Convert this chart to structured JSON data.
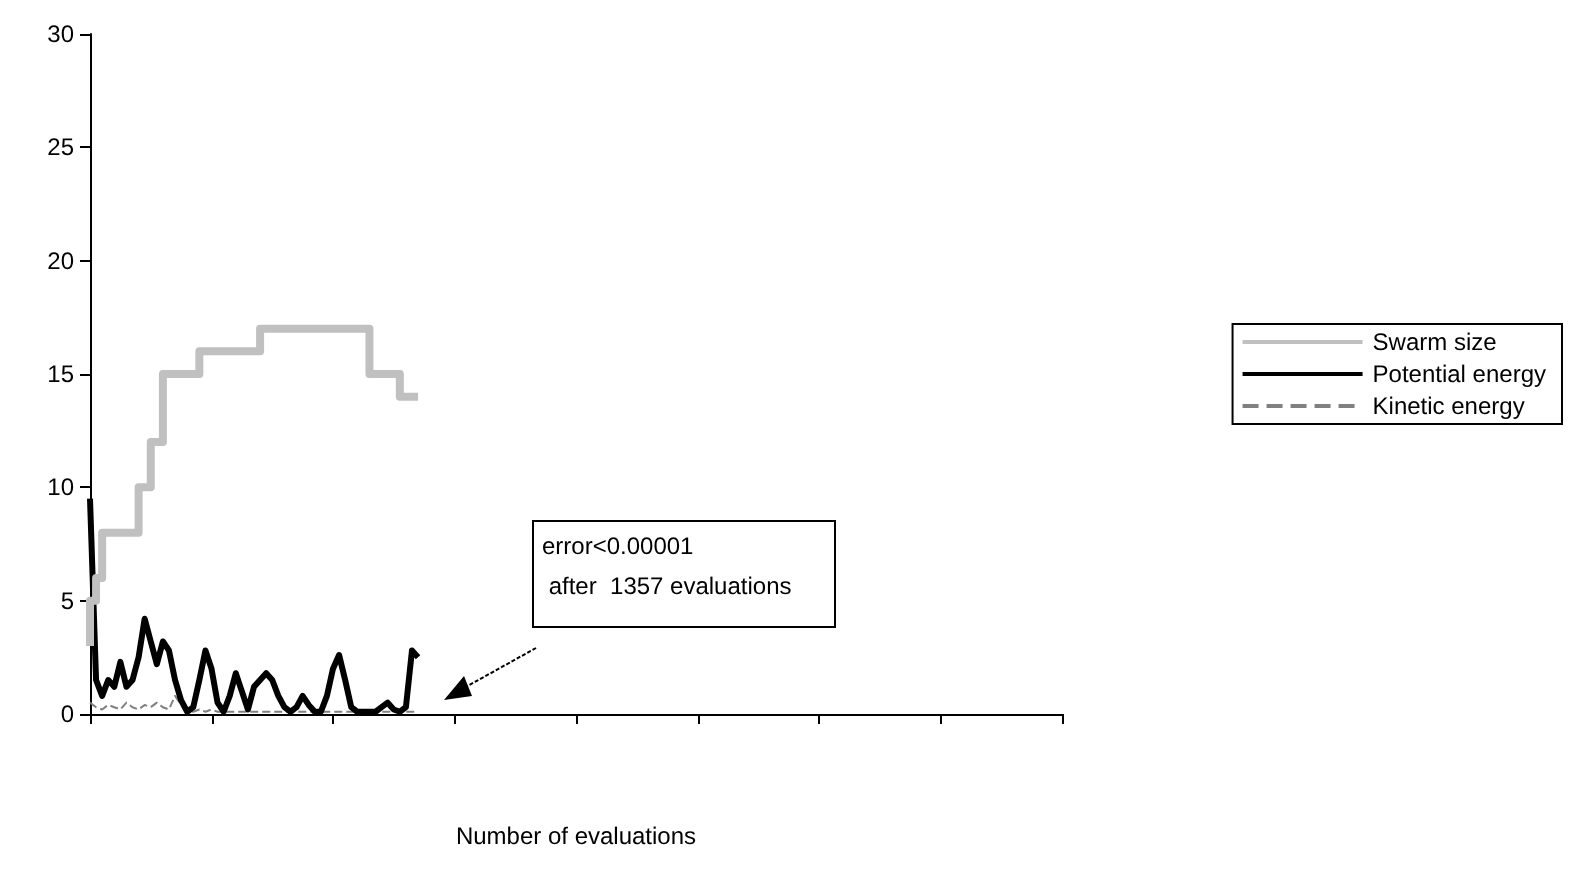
{
  "chart_data": {
    "type": "line",
    "xlabel": "Number of evaluations",
    "annotations": [
      "error<0.00001\n after  1357 evaluations"
    ],
    "ylim": [
      0,
      30
    ],
    "yticks": [
      0,
      5,
      10,
      15,
      20,
      25,
      30
    ],
    "tick_labels": "y",
    "grid": false,
    "legend": "right",
    "categories": [
      null,
      null,
      null,
      null,
      null,
      null,
      null,
      null,
      null,
      null,
      null,
      null,
      null,
      null,
      null,
      null,
      null,
      null,
      null,
      null,
      null,
      null,
      null,
      null,
      null,
      null,
      null,
      null,
      null,
      null,
      null,
      null,
      null,
      null,
      null,
      null,
      null,
      null,
      null,
      null,
      null,
      null,
      null,
      null,
      null,
      null,
      null,
      null,
      null,
      null,
      null,
      null,
      null,
      null,
      null,
      null,
      null,
      null,
      null,
      null,
      null,
      null,
      null,
      null,
      null,
      null,
      null,
      null,
      null,
      null,
      null,
      null,
      null,
      null,
      null,
      null,
      null,
      null,
      null,
      null,
      null,
      null,
      null,
      null,
      null,
      null,
      null,
      null,
      null,
      null,
      null,
      null,
      null,
      null,
      null,
      null,
      null,
      null,
      null,
      null,
      null,
      null,
      null,
      null,
      null,
      null,
      null,
      null,
      null,
      null,
      null,
      null,
      null,
      null,
      null,
      null,
      null,
      null,
      null,
      null,
      null,
      null,
      null,
      null,
      null,
      null,
      null,
      null,
      null,
      null,
      null,
      null,
      null,
      null,
      null,
      null,
      null,
      null,
      null,
      null,
      null,
      null,
      null,
      null,
      null,
      null,
      null,
      null,
      null,
      null,
      null,
      null,
      null,
      null,
      null,
      null,
      null,
      null,
      null,
      null,
      null
    ],
    "series": [
      {
        "name": "Swarm size",
        "type": "step",
        "color": "#c0c0c0",
        "line_style": "solid",
        "values": [
          3,
          5,
          6,
          8,
          8,
          8,
          8,
          8,
          8,
          10,
          10,
          12,
          12,
          15,
          15,
          15,
          15,
          15,
          15,
          16,
          16,
          16,
          16,
          16,
          16,
          16,
          16,
          16,
          16,
          17,
          17,
          17,
          17,
          17,
          17,
          17,
          17,
          17,
          17,
          17,
          17,
          17,
          17,
          17,
          17,
          17,
          17,
          15,
          15,
          15,
          15,
          15,
          14,
          14,
          14,
          null,
          null,
          null,
          null,
          null,
          null,
          null,
          null,
          null,
          null,
          null,
          null,
          null,
          null,
          null,
          null,
          null,
          null,
          null,
          null,
          null,
          null,
          null,
          null,
          null,
          null,
          null,
          null,
          null,
          null,
          null,
          null,
          null,
          null,
          null,
          null,
          null,
          null,
          null,
          null,
          null,
          null,
          null,
          null,
          null,
          null,
          null,
          null,
          null,
          null,
          null,
          null,
          null,
          null,
          null,
          null,
          null,
          null,
          null,
          null,
          null,
          null,
          null,
          null,
          null,
          null,
          null,
          null,
          null,
          null,
          null,
          null,
          null,
          null,
          null,
          null,
          null,
          null,
          null,
          null,
          null,
          null,
          null,
          null,
          null,
          null,
          null,
          null,
          null,
          null,
          null,
          null,
          null,
          null,
          null,
          null,
          null,
          null,
          null,
          null,
          null,
          null,
          null,
          null,
          null,
          null
        ]
      },
      {
        "name": "Potential energy",
        "color": "#000000",
        "line_style": "solid",
        "values": [
          9.5,
          1.5,
          0.8,
          1.5,
          1.2,
          2.3,
          1.2,
          1.5,
          2.5,
          4.2,
          3.2,
          2.2,
          3.2,
          2.8,
          1.5,
          0.6,
          0.1,
          0.3,
          1.5,
          2.8,
          2,
          0.5,
          0.1,
          0.8,
          1.8,
          1,
          0.2,
          1.2,
          1.5,
          1.8,
          1.5,
          0.8,
          0.3,
          0.1,
          0.3,
          0.8,
          0.4,
          0.1,
          0.1,
          0.8,
          2,
          2.6,
          1.5,
          0.3,
          0.1,
          0.1,
          0.1,
          0.1,
          0.3,
          0.5,
          0.2,
          0.1,
          0.3,
          2.8,
          2.5,
          null,
          null,
          null,
          null,
          null,
          null,
          null,
          null,
          null,
          null,
          null,
          null,
          null,
          null,
          null,
          null,
          null,
          null,
          null,
          null,
          null,
          null,
          null,
          null,
          null,
          null,
          null,
          null,
          null,
          null,
          null,
          null,
          null,
          null,
          null,
          null,
          null,
          null,
          null,
          null,
          null,
          null,
          null,
          null,
          null,
          null,
          null,
          null,
          null,
          null,
          null,
          null,
          null,
          null,
          null,
          null,
          null,
          null,
          null,
          null,
          null,
          null,
          null,
          null,
          null,
          null,
          null,
          null,
          null,
          null,
          null,
          null,
          null,
          null,
          null,
          null,
          null,
          null,
          null,
          null,
          null,
          null,
          null,
          null,
          null,
          null,
          null,
          null,
          null,
          null,
          null,
          null,
          null,
          null,
          null,
          null,
          null,
          null,
          null,
          null,
          null,
          null,
          null,
          null,
          null,
          null
        ]
      },
      {
        "name": "Kinetic energy",
        "color": "#808080",
        "line_style": "dashed",
        "values": [
          0.5,
          0.3,
          0.2,
          0.4,
          0.3,
          0.2,
          0.5,
          0.3,
          0.2,
          0.4,
          0.3,
          0.5,
          0.3,
          0.2,
          0.8,
          0.4,
          0.2,
          0.1,
          0.2,
          0.1,
          0.2,
          0.1,
          0.1,
          0.1,
          0.1,
          0.1,
          0.1,
          0.1,
          0.1,
          0.1,
          0.1,
          0.1,
          0.1,
          0.1,
          0.1,
          0.1,
          0.1,
          0.1,
          0.1,
          0.1,
          0.1,
          0.1,
          0.1,
          0.1,
          0.1,
          0.1,
          0.1,
          0.1,
          0.1,
          0.1,
          0.1,
          0.1,
          0.1,
          0.1,
          0.1,
          null,
          null,
          null,
          null,
          null,
          null,
          null,
          null,
          null,
          null,
          null,
          null,
          null,
          null,
          null,
          null,
          null,
          null,
          null,
          null,
          null,
          null,
          null,
          null,
          null,
          null,
          null,
          null,
          null,
          null,
          null,
          null,
          null,
          null,
          null,
          null,
          null,
          null,
          null,
          null,
          null,
          null,
          null,
          null,
          null,
          null,
          null,
          null,
          null,
          null,
          null,
          null,
          null,
          null,
          null,
          null,
          null,
          null,
          null,
          null,
          null,
          null,
          null,
          null,
          null,
          null,
          null,
          null,
          null,
          null,
          null,
          null,
          null,
          null,
          null,
          null,
          null,
          null,
          null,
          null,
          null,
          null,
          null,
          null,
          null,
          null,
          null,
          null,
          null,
          null,
          null,
          null,
          null,
          null,
          null,
          null,
          null,
          null,
          null,
          null,
          null,
          null,
          null,
          null,
          null,
          null
        ]
      }
    ]
  }
}
